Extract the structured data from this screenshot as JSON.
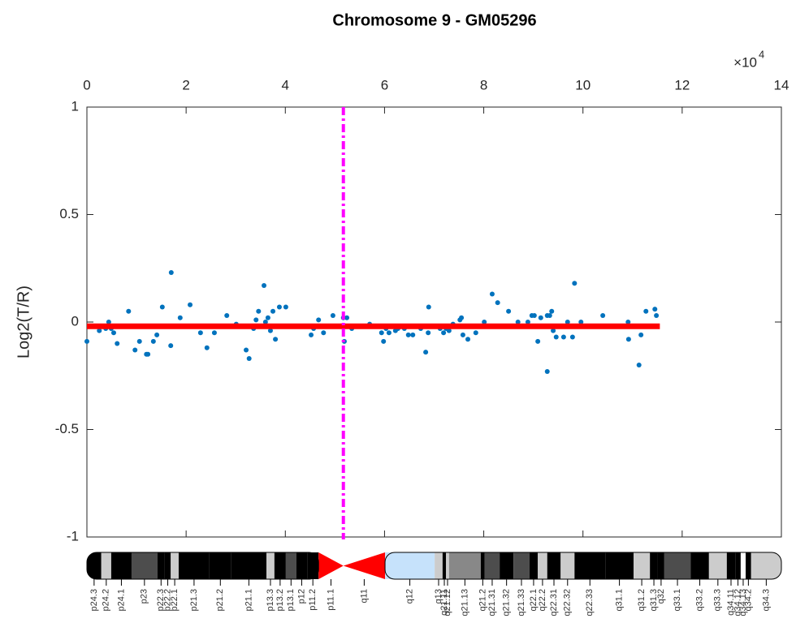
{
  "chart_data": {
    "type": "scatter",
    "title": "Chromosome 9 - GM05296",
    "y_label": "Log2(T/R)",
    "x_multiplier": {
      "base": "×10",
      "exponent": "4"
    },
    "xlim": [
      0,
      14
    ],
    "xticks": [
      0,
      2,
      4,
      6,
      8,
      10,
      12,
      14
    ],
    "ylim": [
      -1,
      1
    ],
    "yticks": [
      -1,
      -0.5,
      0,
      0.5,
      1
    ],
    "color": "#0072bd",
    "x": [
      0.0,
      0.13,
      0.25,
      0.38,
      0.44,
      0.49,
      0.54,
      0.61,
      0.84,
      0.97,
      1.06,
      1.2,
      1.23,
      1.34,
      1.41,
      1.52,
      1.69,
      1.7,
      1.88,
      2.08,
      2.29,
      2.42,
      2.57,
      2.82,
      3.01,
      3.21,
      3.27,
      3.36,
      3.41,
      3.46,
      3.57,
      3.6,
      3.65,
      3.7,
      3.75,
      3.8,
      3.88,
      4.01,
      4.52,
      4.57,
      4.67,
      4.77,
      4.96,
      5.17,
      5.19,
      5.24,
      5.34,
      5.4,
      5.7,
      5.94,
      5.98,
      6.03,
      6.09,
      6.22,
      6.27,
      6.4,
      6.48,
      6.57,
      6.65,
      6.73,
      6.83,
      6.88,
      6.89,
      6.99,
      7.12,
      7.19,
      7.24,
      7.3,
      7.38,
      7.52,
      7.55,
      7.58,
      7.68,
      7.75,
      7.84,
      8.01,
      8.17,
      8.2,
      8.28,
      8.5,
      8.65,
      8.69,
      8.89,
      8.97,
      9.02,
      9.09,
      9.15,
      9.28,
      9.28,
      9.33,
      9.37,
      9.4,
      9.46,
      9.61,
      9.69,
      9.79,
      9.83,
      9.96,
      10.4,
      10.91,
      10.92,
      11.13,
      11.17,
      11.27,
      11.45,
      11.48
    ],
    "values": [
      -0.09,
      -0.02,
      -0.04,
      -0.03,
      0.0,
      -0.03,
      -0.05,
      -0.1,
      0.05,
      -0.13,
      -0.09,
      -0.15,
      -0.15,
      -0.09,
      -0.06,
      0.07,
      -0.11,
      0.23,
      0.02,
      0.08,
      -0.05,
      -0.12,
      -0.05,
      0.03,
      -0.01,
      -0.13,
      -0.17,
      -0.03,
      0.01,
      0.05,
      0.17,
      0.0,
      0.02,
      -0.04,
      0.05,
      -0.08,
      0.07,
      0.07,
      -0.06,
      -0.03,
      0.01,
      -0.05,
      0.03,
      0.02,
      -0.09,
      0.02,
      -0.03,
      -0.02,
      -0.01,
      -0.05,
      -0.09,
      -0.03,
      -0.05,
      -0.04,
      -0.03,
      -0.03,
      -0.06,
      -0.06,
      -0.02,
      -0.03,
      -0.14,
      -0.05,
      0.07,
      -0.02,
      -0.03,
      -0.05,
      -0.03,
      -0.04,
      -0.01,
      0.01,
      0.02,
      -0.06,
      -0.08,
      -0.02,
      -0.05,
      0.0,
      0.13,
      -0.02,
      0.09,
      0.05,
      -0.02,
      0.0,
      0.0,
      0.03,
      0.03,
      -0.09,
      0.02,
      0.03,
      -0.23,
      0.03,
      0.05,
      -0.04,
      -0.07,
      -0.07,
      0.0,
      -0.07,
      0.18,
      0.0,
      0.03,
      0.0,
      -0.08,
      -0.2,
      -0.06,
      0.05,
      0.06,
      0.03
    ],
    "segments": [
      {
        "x": [
          0,
          11.55
        ],
        "values": [
          -0.02,
          -0.02
        ],
        "color": "#ff0000"
      }
    ],
    "vlines": [
      {
        "x": 5.17,
        "color": "#ff00ff"
      }
    ],
    "ideogram": {
      "bands": [
        {
          "name": "p24.3",
          "start": 0,
          "end": 0.29,
          "stain": "#000000"
        },
        {
          "name": "p24.2",
          "start": 0.29,
          "end": 0.49,
          "stain": "#cccccc"
        },
        {
          "name": "p24.1",
          "start": 0.49,
          "end": 0.9,
          "stain": "#000000"
        },
        {
          "name": "p23",
          "start": 0.9,
          "end": 1.42,
          "stain": "#4d4d4d"
        },
        {
          "name": "p22.3",
          "start": 1.42,
          "end": 1.57,
          "stain": "#000000"
        },
        {
          "name": "p22.2",
          "start": 1.57,
          "end": 1.69,
          "stain": "#000000"
        },
        {
          "name": "p22.1",
          "start": 1.69,
          "end": 1.85,
          "stain": "#cccccc"
        },
        {
          "name": "p21.3",
          "start": 1.85,
          "end": 2.47,
          "stain": "#000000"
        },
        {
          "name": "p21.2",
          "start": 2.47,
          "end": 2.91,
          "stain": "#000000"
        },
        {
          "name": "p21.1",
          "start": 2.91,
          "end": 3.62,
          "stain": "#000000"
        },
        {
          "name": "p13.3",
          "start": 3.62,
          "end": 3.78,
          "stain": "#cccccc"
        },
        {
          "name": "p13.2",
          "start": 3.78,
          "end": 4.01,
          "stain": "#000000"
        },
        {
          "name": "p13.1",
          "start": 4.01,
          "end": 4.22,
          "stain": "#4d4d4d"
        },
        {
          "name": "p12",
          "start": 4.22,
          "end": 4.44,
          "stain": "#000000"
        },
        {
          "name": "p11.2",
          "start": 4.44,
          "end": 4.67,
          "stain": "#000000"
        },
        {
          "name": "p11.1",
          "start": 4.67,
          "end": 5.17,
          "stain": "acen"
        },
        {
          "name": "q11",
          "start": 5.17,
          "end": 6.01,
          "stain": "acen"
        },
        {
          "name": "q12",
          "start": 6.01,
          "end": 7.01,
          "stain": "#c6e2fb"
        },
        {
          "name": "q13",
          "start": 7.01,
          "end": 7.17,
          "stain": "#cccccc"
        },
        {
          "name": "q21.11",
          "start": 7.17,
          "end": 7.24,
          "stain": "#000000"
        },
        {
          "name": "q21.12",
          "start": 7.24,
          "end": 7.3,
          "stain": "#cccccc"
        },
        {
          "name": "q21.13",
          "start": 7.3,
          "end": 7.94,
          "stain": "#888888"
        },
        {
          "name": "q21.2",
          "start": 7.94,
          "end": 8.02,
          "stain": "#000000"
        },
        {
          "name": "q21.31",
          "start": 8.02,
          "end": 8.32,
          "stain": "#4d4d4d"
        },
        {
          "name": "q21.32",
          "start": 8.32,
          "end": 8.6,
          "stain": "#000000"
        },
        {
          "name": "q21.33",
          "start": 8.6,
          "end": 8.92,
          "stain": "#4d4d4d"
        },
        {
          "name": "q22.1",
          "start": 8.92,
          "end": 9.09,
          "stain": "#000000"
        },
        {
          "name": "q22.2",
          "start": 9.09,
          "end": 9.28,
          "stain": "#cccccc"
        },
        {
          "name": "q22.31",
          "start": 9.28,
          "end": 9.55,
          "stain": "#000000"
        },
        {
          "name": "q22.32",
          "start": 9.55,
          "end": 9.83,
          "stain": "#cccccc"
        },
        {
          "name": "q22.33",
          "start": 9.83,
          "end": 10.45,
          "stain": "#000000"
        },
        {
          "name": "q31.1",
          "start": 10.45,
          "end": 11.02,
          "stain": "#000000"
        },
        {
          "name": "q31.2",
          "start": 11.02,
          "end": 11.35,
          "stain": "#cccccc"
        },
        {
          "name": "q31.3",
          "start": 11.35,
          "end": 11.51,
          "stain": "#000000"
        },
        {
          "name": "q32",
          "start": 11.51,
          "end": 11.64,
          "stain": "#000000"
        },
        {
          "name": "q33.1",
          "start": 11.64,
          "end": 12.17,
          "stain": "#4d4d4d"
        },
        {
          "name": "q33.2",
          "start": 12.17,
          "end": 12.54,
          "stain": "#000000"
        },
        {
          "name": "q33.3",
          "start": 12.54,
          "end": 12.9,
          "stain": "#cccccc"
        },
        {
          "name": "q34.11",
          "start": 12.9,
          "end": 13.07,
          "stain": "#000000"
        },
        {
          "name": "q34.12",
          "start": 13.07,
          "end": 13.18,
          "stain": "#000000"
        },
        {
          "name": "q34.13",
          "start": 13.18,
          "end": 13.28,
          "stain": "#ffffff"
        },
        {
          "name": "q34.2",
          "start": 13.28,
          "end": 13.39,
          "stain": "#000000"
        },
        {
          "name": "q34.3",
          "start": 13.39,
          "end": 14.0,
          "stain": "#cccccc"
        }
      ]
    }
  }
}
